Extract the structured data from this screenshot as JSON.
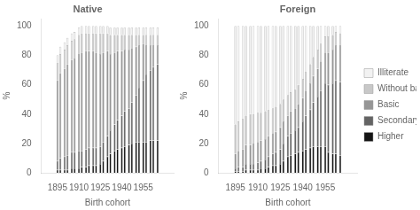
{
  "chart_data": [
    {
      "type": "bar",
      "title": "Native",
      "xlabel": "Birth cohort",
      "ylabel": "%",
      "x": [
        1895,
        1897,
        1900,
        1902,
        1905,
        1907,
        1910,
        1912,
        1915,
        1917,
        1920,
        1922,
        1925,
        1927,
        1930,
        1932,
        1935,
        1937,
        1940,
        1942,
        1945,
        1947,
        1950,
        1952,
        1955,
        1957,
        1960,
        1962,
        1965
      ],
      "series": [
        {
          "name": "Higher",
          "color": "#141414",
          "values": [
            2,
            2,
            2,
            2,
            3,
            3,
            3,
            4,
            4,
            5,
            5,
            5,
            6,
            8,
            11,
            13,
            15,
            16,
            17,
            18,
            19,
            20,
            21,
            21,
            21,
            21,
            22,
            22,
            22
          ]
        },
        {
          "name": "Secondary",
          "color": "#646464",
          "values": [
            6,
            8,
            9,
            10,
            11,
            11,
            12,
            11,
            12,
            12,
            12,
            12,
            12,
            13,
            14,
            16,
            18,
            20,
            22,
            24,
            25,
            28,
            32,
            37,
            42,
            46,
            48,
            50,
            52
          ]
        },
        {
          "name": "Basic",
          "color": "#969696",
          "values": [
            55,
            58,
            60,
            62,
            63,
            64,
            66,
            67,
            67,
            66,
            66,
            65,
            63,
            61,
            58,
            52,
            49,
            47,
            44,
            42,
            40,
            37,
            33,
            29,
            25,
            20,
            17,
            15,
            13
          ]
        },
        {
          "name": "Without\nbasic",
          "color": "#c8c8c8",
          "values": [
            12,
            13,
            13,
            13,
            13,
            13,
            13,
            13,
            12,
            12,
            12,
            13,
            14,
            13,
            12,
            13,
            12,
            11,
            11,
            10,
            10,
            9,
            8,
            7,
            6,
            7,
            7,
            7,
            7
          ]
        },
        {
          "name": "Illiterate",
          "color": "#f2f2f2",
          "values": [
            5,
            5,
            5,
            5,
            5,
            5,
            5,
            5,
            5,
            5,
            5,
            5,
            5,
            5,
            5,
            5,
            5,
            5,
            5,
            5,
            5,
            5,
            5,
            5,
            5,
            5,
            5,
            5,
            5
          ]
        }
      ],
      "xlim": [
        1893,
        1967
      ],
      "ylim": [
        0,
        105
      ],
      "xticks": [
        1895,
        1910,
        1925,
        1940,
        1955
      ],
      "yticks": [
        0,
        20,
        40,
        60,
        80,
        100
      ],
      "stacked": true
    },
    {
      "type": "bar",
      "title": "Foreign",
      "xlabel": "Birth cohort",
      "ylabel": "%",
      "x": [
        1895,
        1897,
        1900,
        1902,
        1905,
        1907,
        1910,
        1912,
        1915,
        1917,
        1920,
        1922,
        1925,
        1927,
        1930,
        1932,
        1935,
        1937,
        1940,
        1942,
        1945,
        1947,
        1950,
        1952,
        1955,
        1957,
        1960,
        1962,
        1965
      ],
      "series": [
        {
          "name": "Higher",
          "color": "#141414",
          "values": [
            1,
            1,
            1,
            2,
            2,
            2,
            2,
            3,
            3,
            4,
            5,
            5,
            6,
            8,
            11,
            12,
            13,
            14,
            15,
            16,
            17,
            18,
            18,
            18,
            18,
            14,
            13,
            13,
            12
          ]
        },
        {
          "name": "Secondary",
          "color": "#646464",
          "values": [
            2,
            3,
            3,
            4,
            4,
            4,
            5,
            5,
            6,
            7,
            8,
            9,
            10,
            12,
            14,
            15,
            16,
            17,
            20,
            23,
            26,
            30,
            34,
            38,
            43,
            46,
            48,
            50,
            50
          ]
        },
        {
          "name": "Basic",
          "color": "#969696",
          "values": [
            10,
            11,
            12,
            13,
            13,
            14,
            14,
            14,
            14,
            14,
            14,
            14,
            15,
            15,
            14,
            15,
            15,
            16,
            16,
            17,
            18,
            18,
            19,
            20,
            21,
            22,
            23,
            24,
            25
          ]
        },
        {
          "name": "Without\nbasic",
          "color": "#c8c8c8",
          "values": [
            20,
            20,
            21,
            20,
            21,
            20,
            20,
            19,
            19,
            18,
            17,
            17,
            16,
            15,
            14,
            13,
            13,
            13,
            13,
            13,
            13,
            13,
            13,
            12,
            11,
            11,
            10,
            9,
            8
          ]
        },
        {
          "name": "Illiterate",
          "color": "#f2f2f2",
          "values": [
            67,
            65,
            63,
            61,
            60,
            60,
            59,
            59,
            58,
            57,
            56,
            55,
            53,
            50,
            47,
            45,
            43,
            40,
            36,
            31,
            26,
            21,
            16,
            12,
            7,
            7,
            6,
            4,
            5
          ]
        }
      ],
      "xlim": [
        1893,
        1967
      ],
      "ylim": [
        0,
        105
      ],
      "xticks": [
        1895,
        1910,
        1925,
        1940,
        1955
      ],
      "yticks": [
        0,
        20,
        40,
        60,
        80,
        100
      ],
      "stacked": true,
      "legend": "right"
    }
  ]
}
